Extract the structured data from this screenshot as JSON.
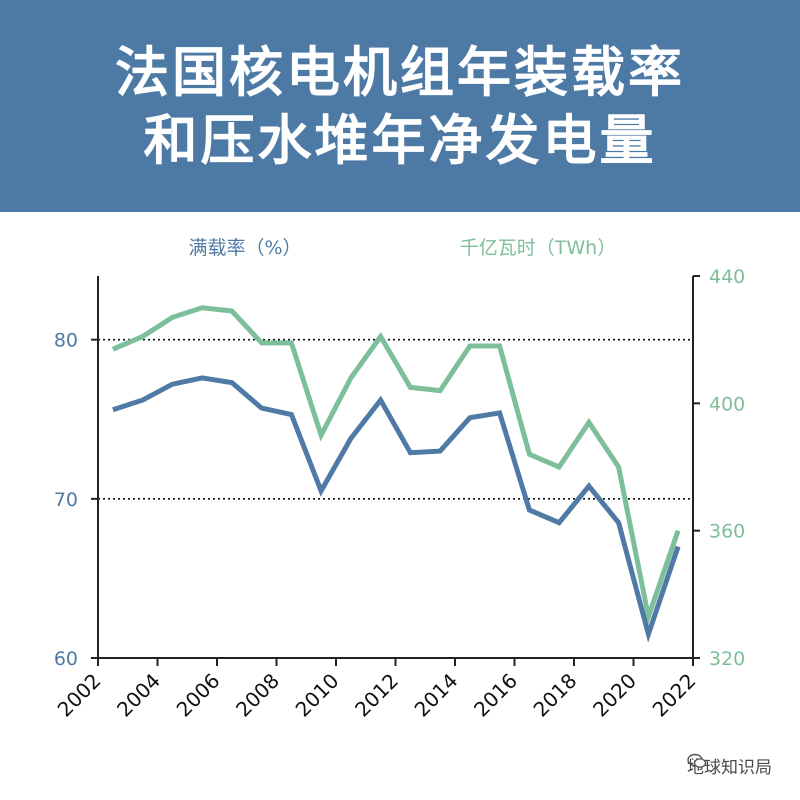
{
  "header": {
    "title_line1": "法国核电机组年装载率",
    "title_line2": "和压水堆年净发电量"
  },
  "watermark": {
    "text": "地球知识局",
    "icon": "wechat-icon"
  },
  "colors": {
    "header_bg": "#4c7aa5",
    "load_factor": "#4f7aa6",
    "generation": "#7cbf9a",
    "axis": "#222222"
  },
  "chart_data": {
    "type": "line",
    "x": [
      2002.5,
      2003.5,
      2004.5,
      2005.5,
      2006.5,
      2007.5,
      2008.5,
      2009.5,
      2010.5,
      2011.5,
      2012.5,
      2013.5,
      2014.5,
      2015.5,
      2016.5,
      2017.5,
      2018.5,
      2019.5,
      2020.5,
      2021.5
    ],
    "series": [
      {
        "name": "满载率（%）",
        "axis": "left",
        "color": "#4f7aa6",
        "values": [
          75.6,
          76.2,
          77.2,
          77.6,
          77.3,
          75.7,
          75.3,
          70.5,
          73.8,
          76.2,
          72.9,
          73.0,
          75.1,
          75.4,
          69.3,
          68.5,
          70.8,
          68.5,
          61.5,
          67.0
        ]
      },
      {
        "name": "千亿瓦时（TWh）",
        "axis": "right",
        "color": "#7cbf9a",
        "values": [
          417,
          421,
          427,
          430,
          429,
          419,
          419,
          390,
          408,
          421,
          405,
          404,
          418,
          418,
          384,
          380,
          394,
          380,
          333,
          360
        ]
      }
    ],
    "left_axis": {
      "label": "满载率（%）",
      "ylim": [
        60,
        84
      ],
      "ticks": [
        60,
        70,
        80
      ]
    },
    "right_axis": {
      "label": "千亿瓦时（TWh）",
      "ylim": [
        320,
        440
      ],
      "ticks": [
        320,
        360,
        400,
        440
      ]
    },
    "x_axis": {
      "xlim": [
        2002,
        2022
      ],
      "ticks": [
        "2002",
        "2004",
        "2006",
        "2008",
        "2010",
        "2012",
        "2014",
        "2016",
        "2018",
        "2020",
        "2022"
      ]
    },
    "gridlines": [
      70,
      80
    ],
    "grid": "dotted horizontal at left-axis 70 and 80"
  }
}
